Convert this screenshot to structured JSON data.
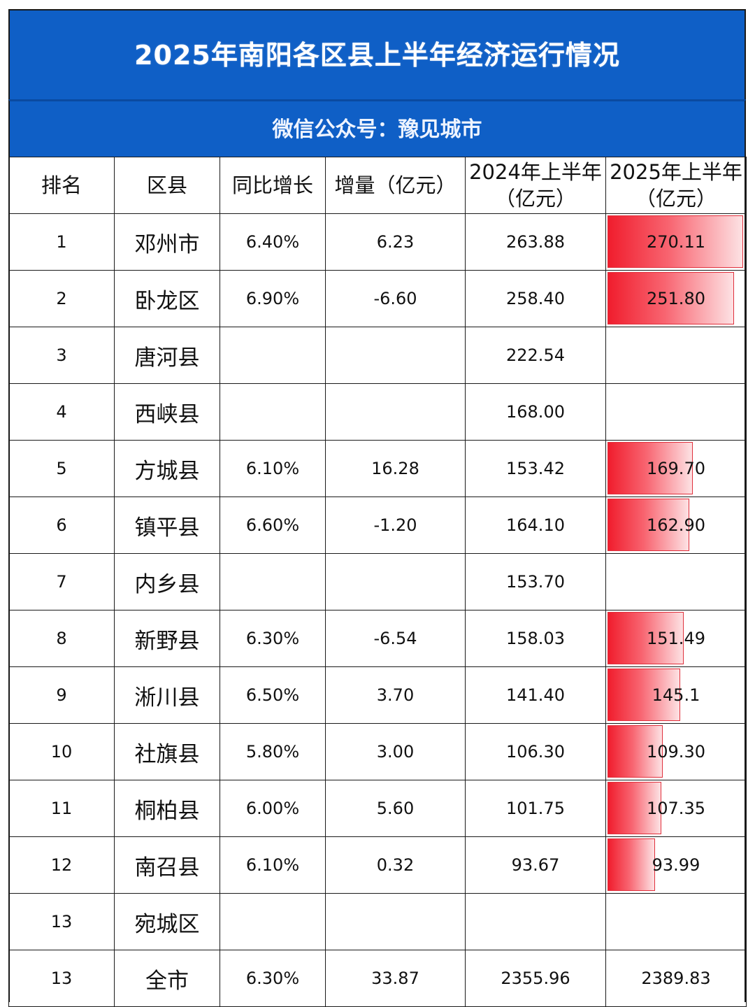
{
  "title": "2025年南阳各区县上半年经济运行情况",
  "subtitle": "微信公众号：豫见城市",
  "headers": {
    "rank": "排名",
    "county": "区县",
    "growth": "同比增长",
    "increment": "增量（亿元）",
    "h1_2024": "2024年上半年（亿元）",
    "h1_2025": "2025年上半年（亿元）"
  },
  "colors": {
    "banner": "#0f5fc6",
    "bar_start": "#f01d2d",
    "bar_end": "#fde2e4",
    "grid": "#1a1a1a"
  },
  "data_bar_max": 270.11,
  "rows": [
    {
      "rank": "1",
      "county": "邓州市",
      "growth": "6.40%",
      "increment": "6.23",
      "h1_2024": "263.88",
      "h1_2025": "270.11",
      "bar_value": 270.11
    },
    {
      "rank": "2",
      "county": "卧龙区",
      "growth": "6.90%",
      "increment": "-6.60",
      "h1_2024": "258.40",
      "h1_2025": "251.80",
      "bar_value": 251.8
    },
    {
      "rank": "3",
      "county": "唐河县",
      "growth": "",
      "increment": "",
      "h1_2024": "222.54",
      "h1_2025": "",
      "bar_value": 0
    },
    {
      "rank": "4",
      "county": "西峡县",
      "growth": "",
      "increment": "",
      "h1_2024": "168.00",
      "h1_2025": "",
      "bar_value": 0
    },
    {
      "rank": "5",
      "county": "方城县",
      "growth": "6.10%",
      "increment": "16.28",
      "h1_2024": "153.42",
      "h1_2025": "169.70",
      "bar_value": 169.7
    },
    {
      "rank": "6",
      "county": "镇平县",
      "growth": "6.60%",
      "increment": "-1.20",
      "h1_2024": "164.10",
      "h1_2025": "162.90",
      "bar_value": 162.9
    },
    {
      "rank": "7",
      "county": "内乡县",
      "growth": "",
      "increment": "",
      "h1_2024": "153.70",
      "h1_2025": "",
      "bar_value": 0
    },
    {
      "rank": "8",
      "county": "新野县",
      "growth": "6.30%",
      "increment": "-6.54",
      "h1_2024": "158.03",
      "h1_2025": "151.49",
      "bar_value": 151.49
    },
    {
      "rank": "9",
      "county": "淅川县",
      "growth": "6.50%",
      "increment": "3.70",
      "h1_2024": "141.40",
      "h1_2025": "145.1",
      "bar_value": 145.1
    },
    {
      "rank": "10",
      "county": "社旗县",
      "growth": "5.80%",
      "increment": "3.00",
      "h1_2024": "106.30",
      "h1_2025": "109.30",
      "bar_value": 109.3
    },
    {
      "rank": "11",
      "county": "桐柏县",
      "growth": "6.00%",
      "increment": "5.60",
      "h1_2024": "101.75",
      "h1_2025": "107.35",
      "bar_value": 107.35
    },
    {
      "rank": "12",
      "county": "南召县",
      "growth": "6.10%",
      "increment": "0.32",
      "h1_2024": "93.67",
      "h1_2025": "93.99",
      "bar_value": 93.99
    },
    {
      "rank": "13",
      "county": "宛城区",
      "growth": "",
      "increment": "",
      "h1_2024": "",
      "h1_2025": "",
      "bar_value": 0
    },
    {
      "rank": "13",
      "county": "全市",
      "growth": "6.30%",
      "increment": "33.87",
      "h1_2024": "2355.96",
      "h1_2025": "2389.83",
      "bar_value": 0
    }
  ]
}
